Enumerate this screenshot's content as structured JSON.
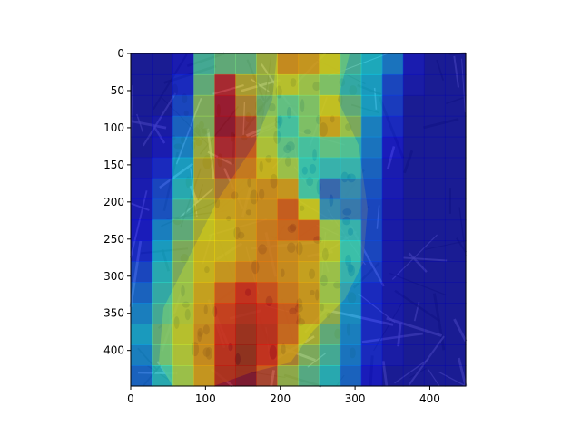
{
  "chart_data": {
    "type": "heatmap",
    "title": "",
    "xlabel": "",
    "ylabel": "",
    "image_shape": [
      448,
      448
    ],
    "xlim": [
      0,
      448
    ],
    "ylim": [
      448,
      0
    ],
    "x_ticks": [
      0,
      100,
      200,
      300,
      400
    ],
    "y_ticks": [
      0,
      50,
      100,
      150,
      200,
      250,
      300,
      350,
      400
    ],
    "colormap": "jet",
    "overlay_on_photo": true,
    "grid": false,
    "legend": "none",
    "grid_shape": [
      16,
      16
    ],
    "intensity_grid": [
      [
        0.05,
        0.05,
        0.1,
        0.45,
        0.5,
        0.5,
        0.6,
        0.72,
        0.7,
        0.62,
        0.45,
        0.38,
        0.28,
        0.1,
        0.05,
        0.05
      ],
      [
        0.05,
        0.05,
        0.15,
        0.5,
        0.85,
        0.65,
        0.58,
        0.6,
        0.55,
        0.5,
        0.42,
        0.35,
        0.2,
        0.08,
        0.05,
        0.05
      ],
      [
        0.05,
        0.05,
        0.2,
        0.55,
        0.9,
        0.7,
        0.52,
        0.45,
        0.5,
        0.62,
        0.5,
        0.35,
        0.18,
        0.05,
        0.05,
        0.05
      ],
      [
        0.05,
        0.08,
        0.25,
        0.55,
        0.92,
        0.8,
        0.55,
        0.4,
        0.5,
        0.68,
        0.55,
        0.3,
        0.15,
        0.05,
        0.05,
        0.05
      ],
      [
        0.05,
        0.1,
        0.3,
        0.6,
        0.85,
        0.8,
        0.58,
        0.45,
        0.4,
        0.45,
        0.42,
        0.28,
        0.12,
        0.05,
        0.05,
        0.05
      ],
      [
        0.08,
        0.15,
        0.35,
        0.65,
        0.8,
        0.75,
        0.65,
        0.55,
        0.38,
        0.35,
        0.35,
        0.25,
        0.1,
        0.05,
        0.05,
        0.05
      ],
      [
        0.1,
        0.2,
        0.4,
        0.65,
        0.72,
        0.7,
        0.72,
        0.7,
        0.4,
        0.22,
        0.28,
        0.22,
        0.1,
        0.05,
        0.05,
        0.05
      ],
      [
        0.1,
        0.22,
        0.45,
        0.62,
        0.68,
        0.7,
        0.72,
        0.8,
        0.62,
        0.28,
        0.25,
        0.2,
        0.08,
        0.05,
        0.05,
        0.05
      ],
      [
        0.12,
        0.3,
        0.5,
        0.62,
        0.65,
        0.7,
        0.75,
        0.78,
        0.8,
        0.55,
        0.35,
        0.2,
        0.08,
        0.05,
        0.05,
        0.05
      ],
      [
        0.15,
        0.35,
        0.55,
        0.65,
        0.65,
        0.7,
        0.75,
        0.72,
        0.7,
        0.6,
        0.38,
        0.2,
        0.08,
        0.05,
        0.05,
        0.05
      ],
      [
        0.2,
        0.4,
        0.55,
        0.65,
        0.7,
        0.75,
        0.75,
        0.72,
        0.68,
        0.55,
        0.35,
        0.18,
        0.08,
        0.05,
        0.05,
        0.05
      ],
      [
        0.25,
        0.42,
        0.55,
        0.68,
        0.8,
        0.88,
        0.82,
        0.75,
        0.7,
        0.55,
        0.32,
        0.15,
        0.08,
        0.05,
        0.05,
        0.05
      ],
      [
        0.3,
        0.45,
        0.58,
        0.7,
        0.85,
        0.92,
        0.88,
        0.8,
        0.7,
        0.58,
        0.32,
        0.15,
        0.08,
        0.05,
        0.05,
        0.05
      ],
      [
        0.35,
        0.5,
        0.6,
        0.72,
        0.88,
        0.95,
        0.9,
        0.78,
        0.62,
        0.5,
        0.3,
        0.15,
        0.08,
        0.05,
        0.05,
        0.05
      ],
      [
        0.3,
        0.48,
        0.58,
        0.72,
        0.9,
        0.97,
        0.88,
        0.7,
        0.55,
        0.45,
        0.28,
        0.15,
        0.08,
        0.05,
        0.05,
        0.05
      ],
      [
        0.25,
        0.4,
        0.55,
        0.7,
        0.92,
        0.95,
        0.8,
        0.58,
        0.48,
        0.4,
        0.25,
        0.12,
        0.05,
        0.05,
        0.05,
        0.05
      ]
    ]
  }
}
